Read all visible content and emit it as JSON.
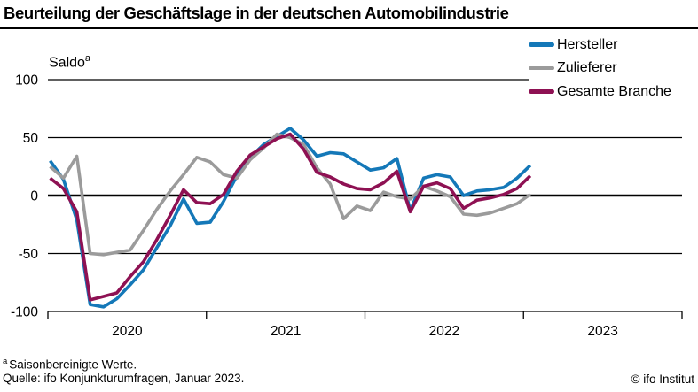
{
  "header": {
    "title": "Beurteilung der Geschäftslage in der deutschen Automobilindustrie"
  },
  "chart": {
    "y_axis_label": "Saldo",
    "y_axis_label_sup": "a",
    "y_ticks": [
      100,
      50,
      0,
      -50,
      -100
    ],
    "x_ticks": [
      "2020",
      "2021",
      "2022",
      "2023"
    ]
  },
  "chart_data": {
    "type": "line",
    "title": "Beurteilung der Geschäftslage in der deutschen Automobilindustrie",
    "xlabel": "",
    "ylabel": "Saldo (saisonbereinigt)",
    "ylim": [
      -100,
      100
    ],
    "grid": true,
    "legend_position": "top-right",
    "categories": [
      "2020-01",
      "2020-02",
      "2020-03",
      "2020-04",
      "2020-05",
      "2020-06",
      "2020-07",
      "2020-08",
      "2020-09",
      "2020-10",
      "2020-11",
      "2020-12",
      "2021-01",
      "2021-02",
      "2021-03",
      "2021-04",
      "2021-05",
      "2021-06",
      "2021-07",
      "2021-08",
      "2021-09",
      "2021-10",
      "2021-11",
      "2021-12",
      "2022-01",
      "2022-02",
      "2022-03",
      "2022-04",
      "2022-05",
      "2022-06",
      "2022-07",
      "2022-08",
      "2022-09",
      "2022-10",
      "2022-11",
      "2022-12",
      "2023-01"
    ],
    "series": [
      {
        "name": "Hersteller",
        "color": "#1478b8",
        "values": [
          30,
          14,
          -21,
          -94,
          -96,
          -89,
          -77,
          -64,
          -45,
          -26,
          -3,
          -24,
          -23,
          -5,
          17,
          33,
          44,
          51,
          58,
          48,
          34,
          37,
          36,
          29,
          22,
          24,
          32,
          -13,
          15,
          18,
          16,
          0,
          4,
          5,
          7,
          15,
          26
        ]
      },
      {
        "name": "Zulieferer",
        "color": "#9b9b9b",
        "values": [
          25,
          15,
          34,
          -50,
          -51,
          -49,
          -47,
          -30,
          -12,
          4,
          18,
          33,
          29,
          18,
          15,
          31,
          41,
          53,
          50,
          44,
          24,
          10,
          -20,
          -9,
          -13,
          3,
          -1,
          -3,
          8,
          4,
          -1,
          -16,
          -17,
          -15,
          -11,
          -7,
          1
        ]
      },
      {
        "name": "Gesamte Branche",
        "color": "#8e1153",
        "values": [
          15,
          6,
          -14,
          -90,
          -87,
          -84,
          -70,
          -57,
          -38,
          -17,
          5,
          -6,
          -7,
          1,
          21,
          35,
          42,
          49,
          53,
          40,
          20,
          16,
          10,
          6,
          5,
          11,
          21,
          -14,
          8,
          11,
          6,
          -11,
          -4,
          -2,
          1,
          6,
          17
        ]
      }
    ]
  },
  "footer": {
    "footnote_sup": "a",
    "footnote_text": "Saisonbereinigte Werte.",
    "source": "Quelle: ifo Konjunkturumfragen, Januar 2023.",
    "copyright": "© ifo Institut"
  }
}
